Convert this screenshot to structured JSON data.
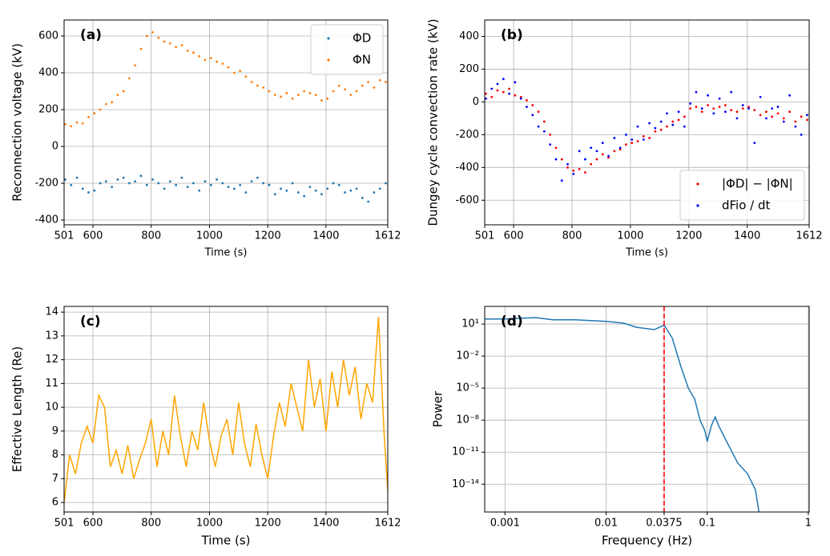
{
  "chart_data": [
    {
      "type": "scatter",
      "label": "(a)",
      "xlabel": "Time (s)",
      "ylabel": "Reconnection voltage (kV)",
      "xlim": [
        501,
        1612
      ],
      "ylim": [
        -426,
        687
      ],
      "xticks": [
        501,
        600,
        800,
        1000,
        1200,
        1400,
        1612
      ],
      "yticks": [
        -400,
        -200,
        0,
        200,
        400,
        600
      ],
      "grid": true,
      "legend": "upper right",
      "x": [
        505,
        525,
        545,
        565,
        585,
        605,
        625,
        645,
        665,
        685,
        705,
        725,
        745,
        765,
        785,
        805,
        825,
        845,
        865,
        885,
        905,
        925,
        945,
        965,
        985,
        1005,
        1025,
        1045,
        1065,
        1085,
        1105,
        1125,
        1145,
        1165,
        1185,
        1205,
        1225,
        1245,
        1265,
        1285,
        1305,
        1325,
        1345,
        1365,
        1385,
        1405,
        1425,
        1445,
        1465,
        1485,
        1505,
        1525,
        1545,
        1565,
        1585,
        1605
      ],
      "series": [
        {
          "name": "ΦD",
          "color": "#1f77b4",
          "values": [
            -180,
            -210,
            -170,
            -230,
            -250,
            -240,
            -200,
            -190,
            -220,
            -180,
            -170,
            -200,
            -190,
            -160,
            -210,
            -180,
            -200,
            -230,
            -190,
            -210,
            -170,
            -220,
            -200,
            -240,
            -190,
            -210,
            -180,
            -200,
            -220,
            -230,
            -210,
            -250,
            -190,
            -170,
            -200,
            -210,
            -260,
            -230,
            -240,
            -200,
            -250,
            -270,
            -220,
            -240,
            -260,
            -230,
            -200,
            -210,
            -250,
            -240,
            -230,
            -280,
            -300,
            -250,
            -230,
            -200
          ]
        },
        {
          "name": "ΦN",
          "color": "#ff7f0e",
          "values": [
            120,
            110,
            130,
            125,
            160,
            180,
            200,
            230,
            240,
            280,
            300,
            370,
            440,
            530,
            600,
            620,
            590,
            570,
            560,
            540,
            550,
            520,
            510,
            490,
            470,
            480,
            460,
            450,
            430,
            400,
            410,
            380,
            350,
            330,
            320,
            300,
            280,
            270,
            290,
            260,
            280,
            300,
            290,
            280,
            250,
            260,
            300,
            330,
            310,
            280,
            300,
            330,
            350,
            320,
            360,
            350
          ]
        }
      ]
    },
    {
      "type": "scatter",
      "label": "(b)",
      "xlabel": "Time (s)",
      "ylabel": "Dungey cycle convection rate (kV)",
      "xlim": [
        501,
        1612
      ],
      "ylim": [
        -750,
        500
      ],
      "xticks": [
        501,
        600,
        800,
        1000,
        1200,
        1400,
        1612
      ],
      "yticks": [
        -600,
        -400,
        -200,
        0,
        200,
        400
      ],
      "grid": true,
      "legend": "lower right",
      "x": [
        505,
        525,
        545,
        565,
        585,
        605,
        625,
        645,
        665,
        685,
        705,
        725,
        745,
        765,
        785,
        805,
        825,
        845,
        865,
        885,
        905,
        925,
        945,
        965,
        985,
        1005,
        1025,
        1045,
        1065,
        1085,
        1105,
        1125,
        1145,
        1165,
        1185,
        1205,
        1225,
        1245,
        1265,
        1285,
        1305,
        1325,
        1345,
        1365,
        1385,
        1405,
        1425,
        1445,
        1465,
        1485,
        1505,
        1525,
        1545,
        1565,
        1585,
        1605
      ],
      "series": [
        {
          "name": "|ΦD| − |ΦN|",
          "color": "#ff0000",
          "values": [
            50,
            30,
            70,
            60,
            80,
            40,
            30,
            10,
            -20,
            -60,
            -120,
            -200,
            -280,
            -350,
            -400,
            -420,
            -410,
            -430,
            -380,
            -350,
            -320,
            -340,
            -300,
            -290,
            -260,
            -250,
            -240,
            -210,
            -220,
            -180,
            -170,
            -150,
            -120,
            -110,
            -90,
            -40,
            -30,
            -60,
            -20,
            -40,
            -30,
            -20,
            -50,
            -60,
            -40,
            -30,
            -50,
            -80,
            -60,
            -90,
            -70,
            -100,
            -60,
            -120,
            -90,
            -110
          ]
        },
        {
          "name": "dFio / dt",
          "color": "#0000ff",
          "values": [
            20,
            80,
            110,
            140,
            50,
            120,
            20,
            -30,
            -80,
            -150,
            -180,
            -260,
            -350,
            -480,
            -380,
            -440,
            -300,
            -350,
            -280,
            -300,
            -250,
            -330,
            -220,
            -280,
            -200,
            -230,
            -150,
            -230,
            -130,
            -160,
            -120,
            -70,
            -140,
            -60,
            -150,
            -10,
            60,
            -40,
            40,
            -70,
            20,
            -60,
            60,
            -100,
            -20,
            -40,
            -250,
            30,
            -100,
            -40,
            -30,
            -120,
            40,
            -150,
            -200,
            -80
          ]
        }
      ]
    },
    {
      "type": "line",
      "label": "(c)",
      "xlabel": "Time (s)",
      "ylabel": "Effective Length (Re)",
      "xlim": [
        501,
        1612
      ],
      "ylim": [
        5.6,
        14.24
      ],
      "xticks": [
        501,
        600,
        800,
        1000,
        1200,
        1400,
        1612
      ],
      "yticks": [
        6,
        7,
        8,
        9,
        10,
        11,
        12,
        13,
        14
      ],
      "grid": true,
      "x": [
        501,
        520,
        540,
        560,
        580,
        600,
        620,
        640,
        660,
        680,
        700,
        720,
        740,
        760,
        780,
        800,
        820,
        840,
        860,
        880,
        900,
        920,
        940,
        960,
        980,
        1000,
        1020,
        1040,
        1060,
        1080,
        1100,
        1120,
        1140,
        1160,
        1180,
        1200,
        1220,
        1240,
        1260,
        1280,
        1300,
        1320,
        1340,
        1360,
        1380,
        1400,
        1420,
        1440,
        1460,
        1480,
        1500,
        1520,
        1540,
        1560,
        1580,
        1600,
        1612
      ],
      "series": [
        {
          "color": "#ffa500",
          "values": [
            6.0,
            8.0,
            7.2,
            8.5,
            9.2,
            8.5,
            10.5,
            10.0,
            7.5,
            8.2,
            7.2,
            8.4,
            7.0,
            7.8,
            8.5,
            9.5,
            7.5,
            9.0,
            8.0,
            10.5,
            8.8,
            7.5,
            9.0,
            8.2,
            10.2,
            8.6,
            7.5,
            8.8,
            9.5,
            8.0,
            10.2,
            8.5,
            7.5,
            9.3,
            8.0,
            7.0,
            8.8,
            10.2,
            9.2,
            11.0,
            10.0,
            9.0,
            12.0,
            10.0,
            11.2,
            9.0,
            11.5,
            10.0,
            12.0,
            10.5,
            11.7,
            9.5,
            11.0,
            10.2,
            13.8,
            8.8,
            6.5
          ]
        }
      ]
    },
    {
      "type": "line",
      "label": "(d)",
      "xlabel": "Frequency (Hz)",
      "ylabel": "Power",
      "xlog": true,
      "ylog": true,
      "xlim": [
        0.00063,
        1.02
      ],
      "ylim": [
        2.5e-17,
        450
      ],
      "xticks": [
        0.001,
        0.01,
        0.0375,
        0.1,
        1
      ],
      "yticks": [
        {
          "value": 10,
          "label": "10¹"
        },
        {
          "value": 0.01,
          "label": "10⁻²"
        },
        {
          "value": 1e-05,
          "label": "10⁻⁵"
        },
        {
          "value": 1e-08,
          "label": "10⁻⁸"
        },
        {
          "value": 1e-11,
          "label": "10⁻¹¹"
        },
        {
          "value": 1e-14,
          "label": "10⁻¹⁴"
        }
      ],
      "grid": true,
      "vline": {
        "x": 0.0375,
        "color": "#ff0000"
      },
      "x": [
        0.00063,
        0.001,
        0.002,
        0.003,
        0.005,
        0.01,
        0.015,
        0.02,
        0.03,
        0.0375,
        0.045,
        0.055,
        0.065,
        0.075,
        0.085,
        0.095,
        0.1,
        0.11,
        0.12,
        0.13,
        0.15,
        0.17,
        0.2,
        0.25,
        0.3,
        0.33
      ],
      "series": [
        {
          "color": "#1f77b4",
          "values": [
            30,
            30,
            40,
            25,
            25,
            18,
            12,
            5,
            3,
            8,
            0.5,
            0.001,
            1e-05,
            1e-06,
            1e-08,
            1e-09,
            1e-10,
            3e-09,
            2e-08,
            3e-09,
            2e-10,
            2e-11,
            1e-12,
            1e-13,
            3e-15,
            1e-17
          ]
        }
      ]
    }
  ]
}
